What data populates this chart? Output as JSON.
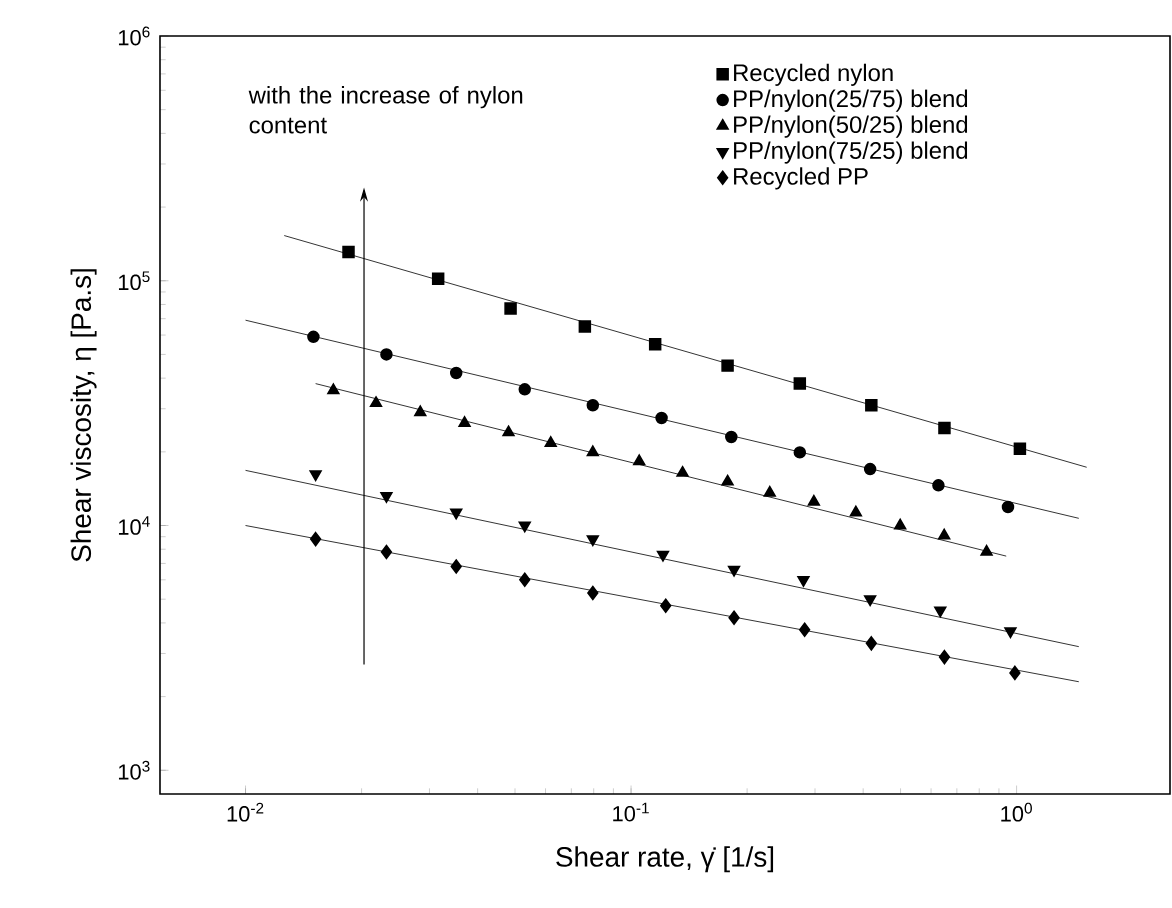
{
  "chart_data": {
    "type": "scatter",
    "xlabel": "Shear rate, γ̇ [1/s]",
    "ylabel": "Shear viscosity, η [Pa.s]",
    "log": "xy",
    "legend": "top right",
    "xlim": [
      0.006,
      2.5
    ],
    "ylim": [
      800,
      1000000
    ],
    "xticks": [
      {
        "value": 0.01,
        "label": "10$^{-2}$"
      },
      {
        "value": 0.1,
        "label": "10$^{-1}$"
      },
      {
        "value": 1,
        "label": "10$^{0}$"
      }
    ],
    "yticks": [
      {
        "value": 1000,
        "label": "10$^{3}$"
      },
      {
        "value": 10000,
        "label": "10$^{4}$"
      },
      {
        "value": 100000,
        "label": "10$^{5}$"
      },
      {
        "value": 1000000,
        "label": "10$^{6}$"
      }
    ],
    "annotations": [
      "with the increase of nylon content"
    ],
    "series": [
      {
        "name": "Recycled nylon",
        "color": "#000000",
        "marker": "square",
        "x": [
          0.0185,
          0.0316,
          0.0487,
          0.0759,
          0.1155,
          0.178,
          0.274,
          0.42,
          0.65,
          1.02
        ],
        "values": [
          131000,
          102000,
          77000,
          65000,
          55000,
          45000,
          38000,
          31000,
          25000,
          20600
        ]
      },
      {
        "name": "PP/nylon(25/75) blend",
        "color": "#000000",
        "marker": "circle",
        "x": [
          0.015,
          0.0232,
          0.0352,
          0.053,
          0.0796,
          0.12,
          0.182,
          0.274,
          0.417,
          0.627,
          0.95
        ],
        "values": [
          59000,
          50000,
          42000,
          36000,
          31000,
          27500,
          23000,
          19900,
          17000,
          14600,
          11900
        ]
      },
      {
        "name": "PP/nylon(50/25) blend",
        "color": "#000000",
        "marker": "triangle",
        "x": [
          0.0169,
          0.0218,
          0.0284,
          0.037,
          0.0481,
          0.0619,
          0.0796,
          0.105,
          0.136,
          0.178,
          0.229,
          0.298,
          0.383,
          0.499,
          0.649,
          0.836
        ],
        "values": [
          35700,
          31600,
          29000,
          26200,
          24000,
          21700,
          19900,
          18300,
          16400,
          15100,
          13600,
          12500,
          11300,
          10000,
          9100,
          7800
        ]
      },
      {
        "name": "PP/nylon(75/25) blend",
        "color": "#000000",
        "marker": "triangle-down",
        "x": [
          0.0152,
          0.0232,
          0.0352,
          0.053,
          0.0796,
          0.121,
          0.185,
          0.28,
          0.417,
          0.634,
          0.964
        ],
        "values": [
          16200,
          13200,
          11300,
          10000,
          8800,
          7600,
          6600,
          6000,
          5000,
          4500,
          3700
        ]
      },
      {
        "name": "Recycled PP",
        "color": "#000000",
        "marker": "diamond",
        "x": [
          0.0152,
          0.0232,
          0.0352,
          0.053,
          0.0796,
          0.123,
          0.185,
          0.282,
          0.42,
          0.65,
          0.99
        ],
        "values": [
          8800,
          7800,
          6800,
          6000,
          5300,
          4700,
          4200,
          3750,
          3300,
          2900,
          2500
        ]
      },
      {
        "type": "line",
        "color": "#000000",
        "marker": "none",
        "x": [
          0.0126,
          1.52
        ],
        "values": [
          153000,
          17300
        ]
      },
      {
        "type": "line",
        "color": "#000000",
        "marker": "none",
        "x": [
          0.01,
          1.45
        ],
        "values": [
          69000,
          10700
        ]
      },
      {
        "type": "line",
        "color": "#000000",
        "marker": "none",
        "x": [
          0.0152,
          0.94
        ],
        "values": [
          38000,
          7500
        ]
      },
      {
        "type": "line",
        "color": "#000000",
        "marker": "none",
        "x": [
          0.01,
          1.45
        ],
        "values": [
          16800,
          3200
        ]
      },
      {
        "type": "line",
        "color": "#000000",
        "marker": "none",
        "x": [
          0.01,
          1.45
        ],
        "values": [
          10000,
          2300
        ]
      }
    ]
  }
}
